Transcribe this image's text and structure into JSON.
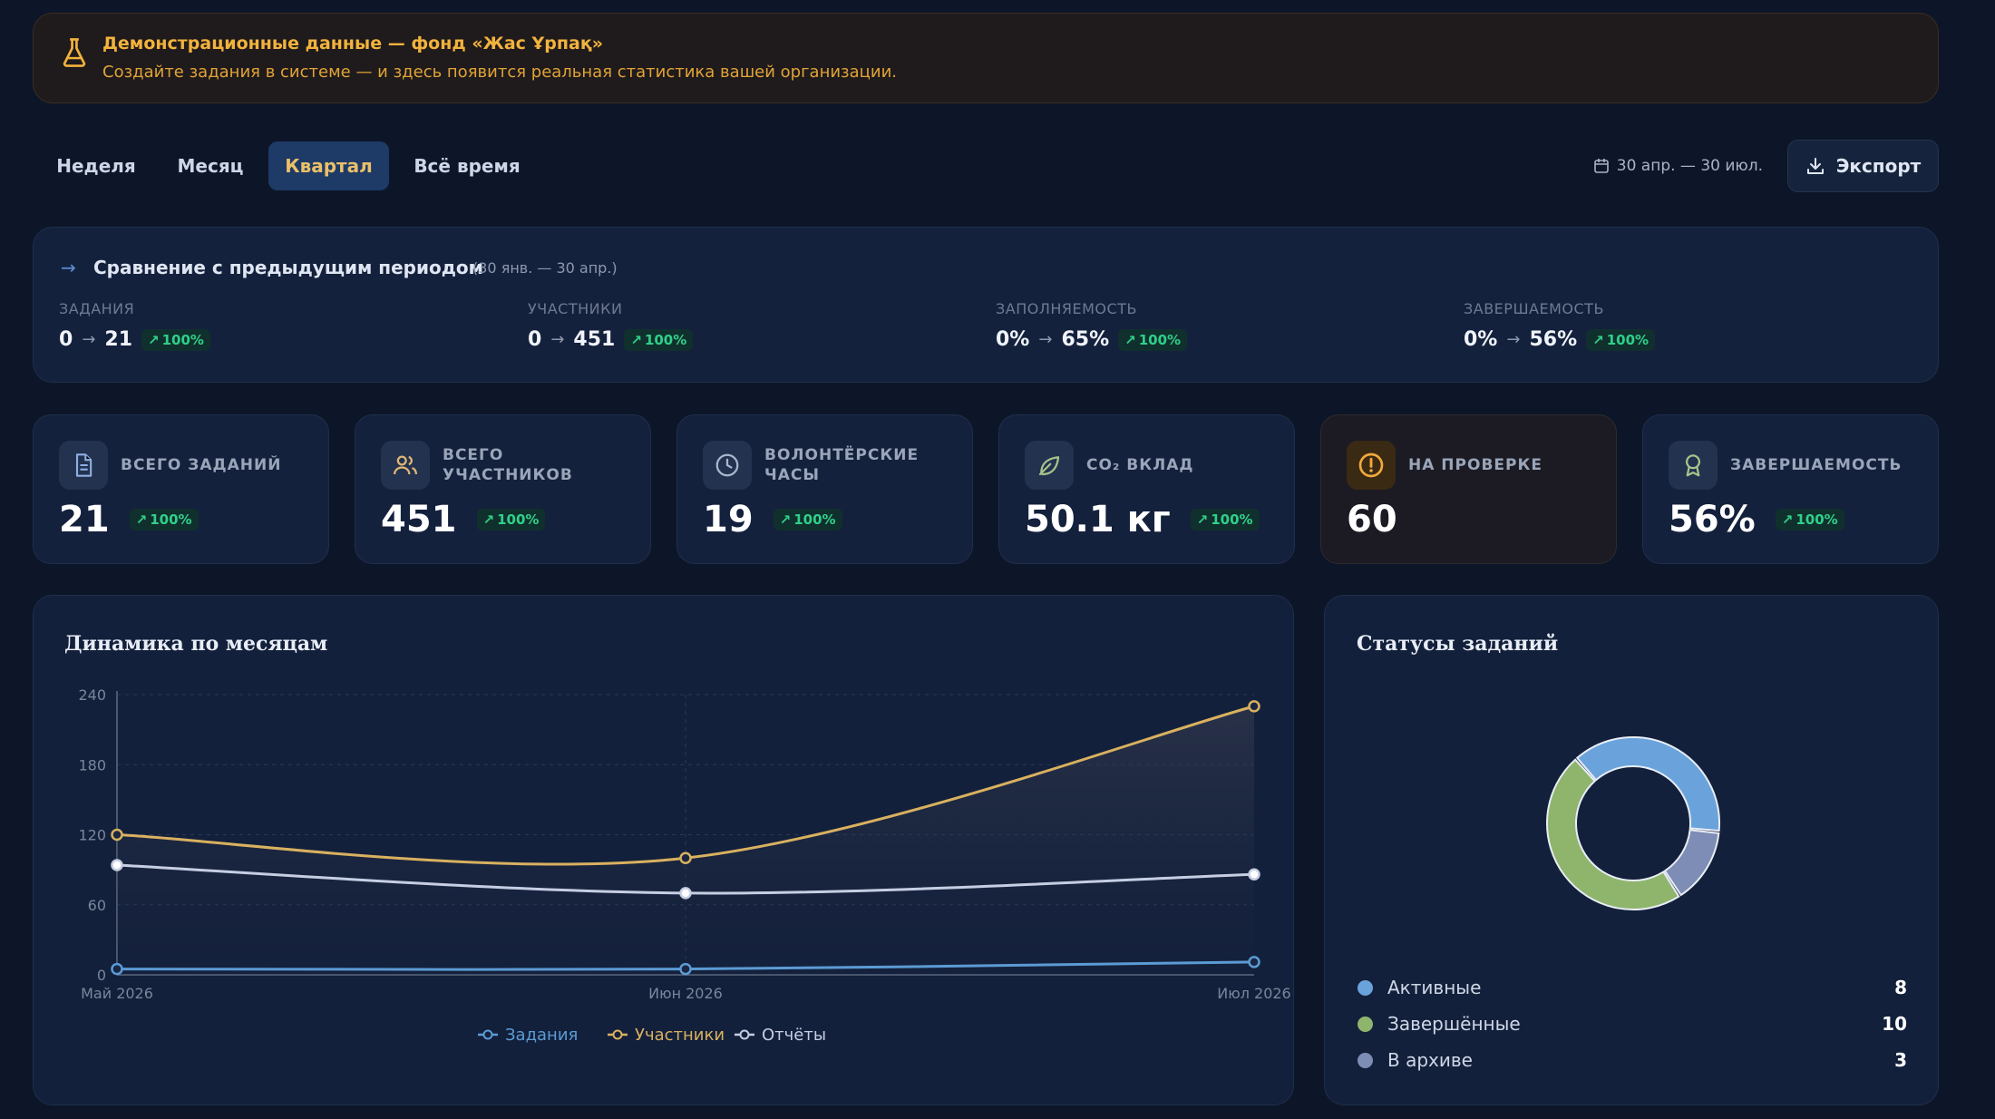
{
  "banner": {
    "title": "Демонстрационные данные — фонд «Жас Ұрпақ»",
    "text": "Создайте задания в системе — и здесь появится реальная статистика вашей организации.",
    "icon": "flask-icon"
  },
  "periods": [
    "Неделя",
    "Месяц",
    "Квартал",
    "Всё время"
  ],
  "active_period": "Квартал",
  "date_range": "30 апр. — 30 июл.",
  "export_label": "Экспорт",
  "comparison": {
    "title": "Сравнение с предыдущим периодом",
    "range": "(30 янв. — 30 апр.)",
    "metrics": [
      {
        "label": "ЗАДАНИЯ",
        "from": "0",
        "to": "21",
        "change": "100%"
      },
      {
        "label": "УЧАСТНИКИ",
        "from": "0",
        "to": "451",
        "change": "100%"
      },
      {
        "label": "ЗАПОЛНЯЕМОСТЬ",
        "from": "0%",
        "to": "65%",
        "change": "100%"
      },
      {
        "label": "ЗАВЕРШАЕМОСТЬ",
        "from": "0%",
        "to": "56%",
        "change": "100%"
      }
    ]
  },
  "stats": [
    {
      "label": "ВСЕГО ЗАДАНИЙ",
      "value": "21",
      "change": "100%",
      "icon": "document-icon"
    },
    {
      "label": "ВСЕГО УЧАСТНИКОВ",
      "value": "451",
      "change": "100%",
      "icon": "users-icon"
    },
    {
      "label": "ВОЛОНТЁРСКИЕ ЧАСЫ",
      "value": "19",
      "change": "100%",
      "icon": "clock-icon"
    },
    {
      "label": "CO₂ ВКЛАД",
      "value": "50.1 кг",
      "change": "100%",
      "icon": "leaf-icon"
    },
    {
      "label": "НА ПРОВЕРКЕ",
      "value": "60",
      "change": "",
      "icon": "alert-icon"
    },
    {
      "label": "ЗАВЕРШАЕМОСТЬ",
      "value": "56%",
      "change": "100%",
      "icon": "award-icon"
    }
  ],
  "colors": {
    "tasks": "#5b9bd5",
    "participants": "#d9b15f",
    "reports": "#c5cee3",
    "active": "#6aa3db",
    "completed": "#8fb56d",
    "archived": "#7d8db5",
    "accent_gold": "#f2b33d",
    "positive": "#2fd08a"
  },
  "chart_data": [
    {
      "type": "line",
      "title": "Динамика по месяцам",
      "categories": [
        "Май 2026",
        "Июн 2026",
        "Июл 2026"
      ],
      "ylim": [
        0,
        240
      ],
      "yticks": [
        0,
        60,
        120,
        180,
        240
      ],
      "grid": true,
      "legend_position": "bottom",
      "series": [
        {
          "name": "Задания",
          "values": [
            5,
            5,
            11
          ]
        },
        {
          "name": "Участники",
          "values": [
            120,
            100,
            230
          ]
        },
        {
          "name": "Отчёты",
          "values": [
            94,
            70,
            86
          ]
        }
      ]
    },
    {
      "type": "pie",
      "title": "Статусы заданий",
      "categories": [
        "Активные",
        "Завершённые",
        "В архиве"
      ],
      "values": [
        8,
        10,
        3
      ],
      "legend_position": "bottom"
    }
  ]
}
